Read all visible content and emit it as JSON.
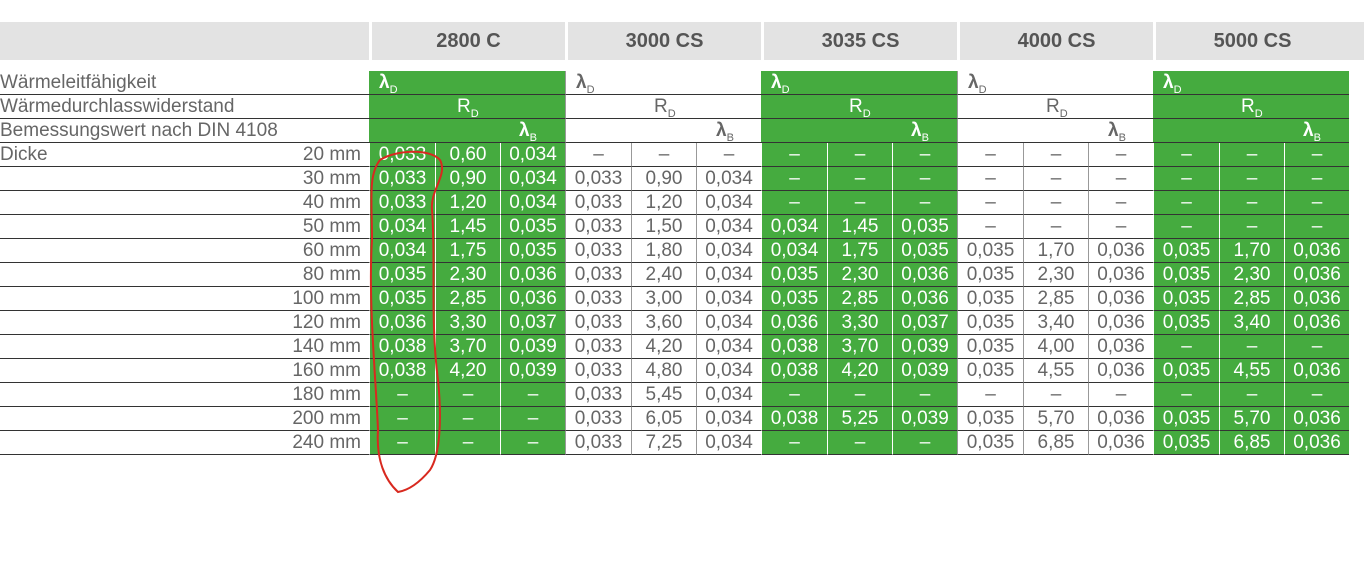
{
  "header": {
    "products": [
      {
        "name": "2800 C",
        "theme": "green"
      },
      {
        "name": "3000 CS",
        "theme": "white"
      },
      {
        "name": "3035 CS",
        "theme": "green"
      },
      {
        "name": "4000 CS",
        "theme": "white"
      },
      {
        "name": "5000 CS",
        "theme": "green"
      }
    ]
  },
  "properties": [
    {
      "label": "Wärmeleitfähigkeit",
      "symbol": "λ",
      "sub": "D"
    },
    {
      "label": "Wärmedurchlasswiderstand",
      "symbol": "R",
      "sub": "D"
    },
    {
      "label": "Bemessungswert nach DIN 4108",
      "symbol": "λ",
      "sub": "B"
    }
  ],
  "thickness_label": "Dicke",
  "rows": [
    {
      "thickness": "20 mm",
      "values": [
        [
          "0,033",
          "0,60",
          "0,034"
        ],
        [
          "–",
          "–",
          "–"
        ],
        [
          "–",
          "–",
          "–"
        ],
        [
          "–",
          "–",
          "–"
        ],
        [
          "–",
          "–",
          "–"
        ]
      ]
    },
    {
      "thickness": "30 mm",
      "values": [
        [
          "0,033",
          "0,90",
          "0,034"
        ],
        [
          "0,033",
          "0,90",
          "0,034"
        ],
        [
          "–",
          "–",
          "–"
        ],
        [
          "–",
          "–",
          "–"
        ],
        [
          "–",
          "–",
          "–"
        ]
      ]
    },
    {
      "thickness": "40 mm",
      "values": [
        [
          "0,033",
          "1,20",
          "0,034"
        ],
        [
          "0,033",
          "1,20",
          "0,034"
        ],
        [
          "–",
          "–",
          "–"
        ],
        [
          "–",
          "–",
          "–"
        ],
        [
          "–",
          "–",
          "–"
        ]
      ]
    },
    {
      "thickness": "50 mm",
      "values": [
        [
          "0,034",
          "1,45",
          "0,035"
        ],
        [
          "0,033",
          "1,50",
          "0,034"
        ],
        [
          "0,034",
          "1,45",
          "0,035"
        ],
        [
          "–",
          "–",
          "–"
        ],
        [
          "–",
          "–",
          "–"
        ]
      ]
    },
    {
      "thickness": "60 mm",
      "values": [
        [
          "0,034",
          "1,75",
          "0,035"
        ],
        [
          "0,033",
          "1,80",
          "0,034"
        ],
        [
          "0,034",
          "1,75",
          "0,035"
        ],
        [
          "0,035",
          "1,70",
          "0,036"
        ],
        [
          "0,035",
          "1,70",
          "0,036"
        ]
      ]
    },
    {
      "thickness": "80 mm",
      "values": [
        [
          "0,035",
          "2,30",
          "0,036"
        ],
        [
          "0,033",
          "2,40",
          "0,034"
        ],
        [
          "0,035",
          "2,30",
          "0,036"
        ],
        [
          "0,035",
          "2,30",
          "0,036"
        ],
        [
          "0,035",
          "2,30",
          "0,036"
        ]
      ]
    },
    {
      "thickness": "100 mm",
      "values": [
        [
          "0,035",
          "2,85",
          "0,036"
        ],
        [
          "0,033",
          "3,00",
          "0,034"
        ],
        [
          "0,035",
          "2,85",
          "0,036"
        ],
        [
          "0,035",
          "2,85",
          "0,036"
        ],
        [
          "0,035",
          "2,85",
          "0,036"
        ]
      ]
    },
    {
      "thickness": "120 mm",
      "values": [
        [
          "0,036",
          "3,30",
          "0,037"
        ],
        [
          "0,033",
          "3,60",
          "0,034"
        ],
        [
          "0,036",
          "3,30",
          "0,037"
        ],
        [
          "0,035",
          "3,40",
          "0,036"
        ],
        [
          "0,035",
          "3,40",
          "0,036"
        ]
      ]
    },
    {
      "thickness": "140 mm",
      "values": [
        [
          "0,038",
          "3,70",
          "0,039"
        ],
        [
          "0,033",
          "4,20",
          "0,034"
        ],
        [
          "0,038",
          "3,70",
          "0,039"
        ],
        [
          "0,035",
          "4,00",
          "0,036"
        ],
        [
          "–",
          "–",
          "–"
        ]
      ]
    },
    {
      "thickness": "160 mm",
      "values": [
        [
          "0,038",
          "4,20",
          "0,039"
        ],
        [
          "0,033",
          "4,80",
          "0,034"
        ],
        [
          "0,038",
          "4,20",
          "0,039"
        ],
        [
          "0,035",
          "4,55",
          "0,036"
        ],
        [
          "0,035",
          "4,55",
          "0,036"
        ]
      ]
    },
    {
      "thickness": "180 mm",
      "values": [
        [
          "–",
          "–",
          "–"
        ],
        [
          "0,033",
          "5,45",
          "0,034"
        ],
        [
          "–",
          "–",
          "–"
        ],
        [
          "–",
          "–",
          "–"
        ],
        [
          "–",
          "–",
          "–"
        ]
      ]
    },
    {
      "thickness": "200 mm",
      "values": [
        [
          "–",
          "–",
          "–"
        ],
        [
          "0,033",
          "6,05",
          "0,034"
        ],
        [
          "0,038",
          "5,25",
          "0,039"
        ],
        [
          "0,035",
          "5,70",
          "0,036"
        ],
        [
          "0,035",
          "5,70",
          "0,036"
        ]
      ]
    },
    {
      "thickness": "240 mm",
      "values": [
        [
          "–",
          "–",
          "–"
        ],
        [
          "0,033",
          "7,25",
          "0,034"
        ],
        [
          "–",
          "–",
          "–"
        ],
        [
          "0,035",
          "6,85",
          "0,036"
        ],
        [
          "0,035",
          "6,85",
          "0,036"
        ]
      ]
    }
  ],
  "annotation": {
    "type": "hand-drawn-circle",
    "color": "#d8291f",
    "target": "2800 C λD column"
  }
}
